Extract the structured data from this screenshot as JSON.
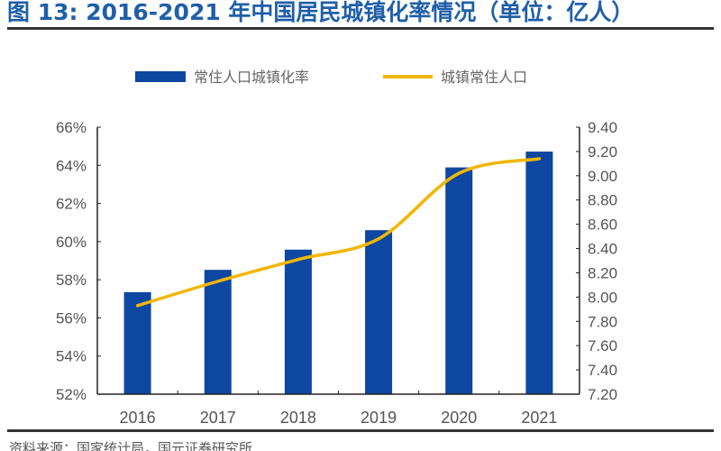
{
  "title": "图 13: 2016-2021 年中国居民城镇化率情况（单位：亿人）",
  "source": "资料来源：国家统计局，国元证券研究所",
  "chart_data": {
    "type": "bar+line",
    "title": "图 13: 2016-2021 年中国居民城镇化率情况（单位：亿人）",
    "categories": [
      "2016",
      "2017",
      "2018",
      "2019",
      "2020",
      "2021"
    ],
    "series": [
      {
        "name": "常住人口城镇化率",
        "type": "bar",
        "axis": "left",
        "color": "#0d47a1",
        "values": [
          57.35,
          58.52,
          59.58,
          60.6,
          63.89,
          64.72
        ]
      },
      {
        "name": "城镇常住人口",
        "type": "line",
        "axis": "right",
        "color": "#f2b600",
        "values": [
          7.93,
          8.13,
          8.31,
          8.48,
          9.02,
          9.14
        ]
      }
    ],
    "left_axis": {
      "ylim": [
        52,
        66
      ],
      "ticks": [
        "52%",
        "54%",
        "56%",
        "58%",
        "60%",
        "62%",
        "64%",
        "66%"
      ]
    },
    "right_axis": {
      "ylim": [
        7.2,
        9.4
      ],
      "ticks": [
        "7.20",
        "7.40",
        "7.60",
        "7.80",
        "8.00",
        "8.20",
        "8.40",
        "8.60",
        "8.80",
        "9.00",
        "9.20",
        "9.40"
      ]
    },
    "grid": false,
    "legend": "top"
  }
}
